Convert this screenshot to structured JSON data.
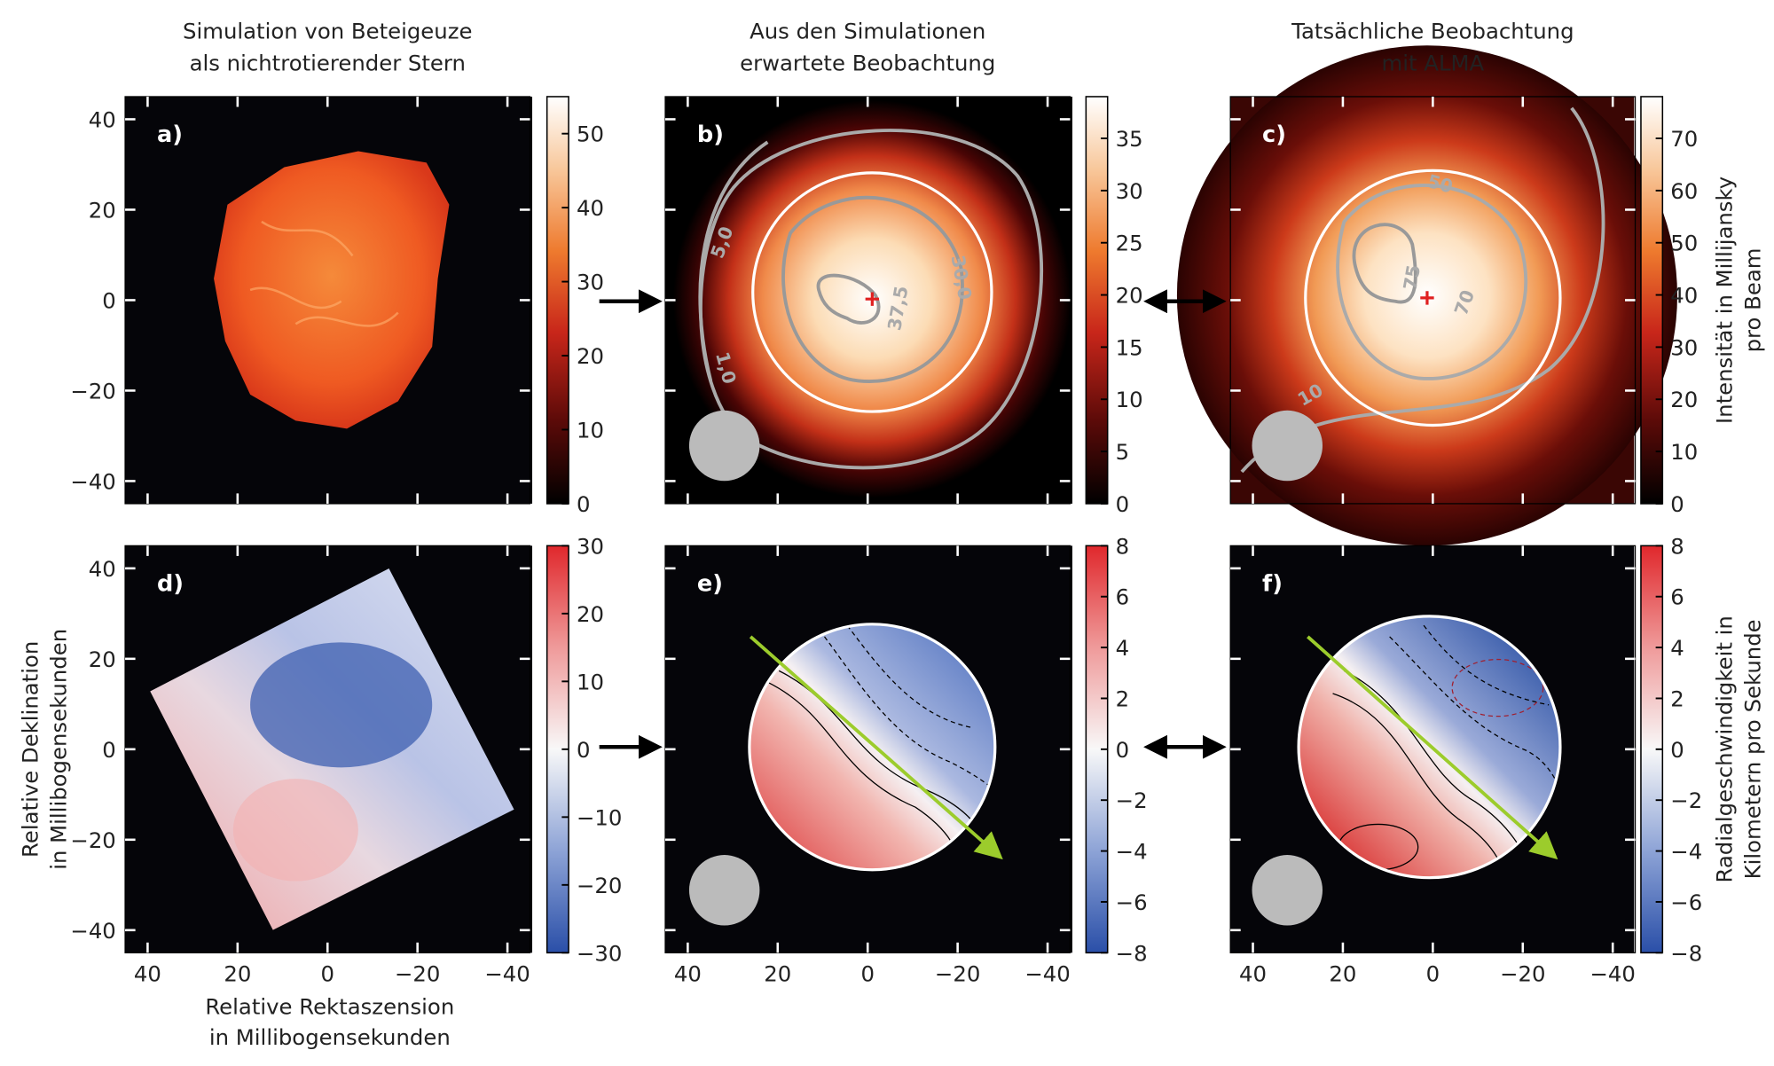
{
  "chart_data": [
    {
      "type": "heatmap",
      "label": "a)",
      "title": [
        "Simulation von Beteigeuze",
        "als nichtrotierender Stern"
      ],
      "colormap": "heat",
      "xlim": [
        45,
        -45
      ],
      "ylim": [
        -45,
        45
      ],
      "xticks": [
        40,
        20,
        0,
        -20,
        -40
      ],
      "yticks": [
        40,
        20,
        0,
        {
          "value": -20,
          "label": "−20"
        },
        {
          "value": -40,
          "label": "−40"
        }
      ],
      "show_xtick_labels": false,
      "show_ytick_labels": true,
      "clim": [
        0,
        55
      ],
      "cticks": [
        0,
        10,
        20,
        30,
        40,
        50
      ]
    },
    {
      "type": "heatmap",
      "label": "b)",
      "title": [
        "Aus den Simulationen",
        "erwartete Beobachtung"
      ],
      "colormap": "heat",
      "xlim": [
        45,
        -45
      ],
      "ylim": [
        -45,
        45
      ],
      "xticks": [
        40,
        20,
        0,
        -20,
        -40
      ],
      "yticks": [
        40,
        20,
        0,
        -20,
        -40
      ],
      "show_xtick_labels": false,
      "show_ytick_labels": false,
      "clim": [
        0,
        39
      ],
      "cticks": [
        0,
        5,
        10,
        15,
        20,
        25,
        30,
        35
      ],
      "contour_labels": [
        "5,0",
        "30,0",
        "37,5",
        "1,0"
      ]
    },
    {
      "type": "heatmap",
      "label": "c)",
      "title": [
        "Tatsächliche Beobachtung",
        "mit ALMA"
      ],
      "colormap": "heat",
      "xlim": [
        45,
        -45
      ],
      "ylim": [
        -45,
        45
      ],
      "xticks": [
        40,
        20,
        0,
        -20,
        -40
      ],
      "yticks": [
        40,
        20,
        0,
        -20,
        -40
      ],
      "show_xtick_labels": false,
      "show_ytick_labels": false,
      "clim": [
        0,
        78
      ],
      "cticks": [
        0,
        10,
        20,
        30,
        40,
        50,
        60,
        70
      ],
      "clabel": [
        "Intensität in Millijansky",
        "pro Beam"
      ],
      "contour_labels": [
        "50",
        "75",
        "70",
        "10"
      ]
    },
    {
      "type": "heatmap",
      "label": "d)",
      "colormap": "diverging",
      "xlabel": [
        "Relative Rektaszension",
        "in Millibogensekunden"
      ],
      "ylabel": [
        "Relative Deklination",
        "in Millibogensekunden"
      ],
      "xlim": [
        45,
        -45
      ],
      "ylim": [
        -45,
        45
      ],
      "xticks": [
        40,
        20,
        0,
        {
          "value": -20,
          "label": "−20"
        },
        {
          "value": -40,
          "label": "−40"
        }
      ],
      "yticks": [
        40,
        20,
        0,
        {
          "value": -20,
          "label": "−20"
        },
        {
          "value": -40,
          "label": "−40"
        }
      ],
      "show_xtick_labels": true,
      "show_ytick_labels": true,
      "clim": [
        -30,
        30
      ],
      "cticks": [
        {
          "value": -30,
          "label": "−30"
        },
        {
          "value": -20,
          "label": "−20"
        },
        {
          "value": -10,
          "label": "−10"
        },
        0,
        10,
        20,
        30
      ]
    },
    {
      "type": "heatmap",
      "label": "e)",
      "colormap": "diverging",
      "xlim": [
        45,
        -45
      ],
      "ylim": [
        -45,
        45
      ],
      "xticks": [
        40,
        20,
        0,
        {
          "value": -20,
          "label": "−20"
        },
        {
          "value": -40,
          "label": "−40"
        }
      ],
      "yticks": [
        40,
        20,
        0,
        -20,
        -40
      ],
      "show_xtick_labels": true,
      "show_ytick_labels": false,
      "clim": [
        -8,
        8
      ],
      "cticks": [
        {
          "value": -8,
          "label": "−8"
        },
        {
          "value": -6,
          "label": "−6"
        },
        {
          "value": -4,
          "label": "−4"
        },
        {
          "value": -2,
          "label": "−2"
        },
        0,
        2,
        4,
        6,
        8
      ]
    },
    {
      "type": "heatmap",
      "label": "f)",
      "colormap": "diverging",
      "xlim": [
        45,
        -45
      ],
      "ylim": [
        -45,
        45
      ],
      "xticks": [
        40,
        20,
        0,
        {
          "value": -20,
          "label": "−20"
        },
        {
          "value": -40,
          "label": "−40"
        }
      ],
      "yticks": [
        40,
        20,
        0,
        -20,
        -40
      ],
      "show_xtick_labels": true,
      "show_ytick_labels": false,
      "clim": [
        -8,
        8
      ],
      "cticks": [
        {
          "value": -8,
          "label": "−8"
        },
        {
          "value": -6,
          "label": "−6"
        },
        {
          "value": -4,
          "label": "−4"
        },
        {
          "value": -2,
          "label": "−2"
        },
        0,
        2,
        4,
        6,
        8
      ],
      "clabel": [
        "Radialgeschwindigkeit in",
        "Kilometern pro Sekunde"
      ]
    }
  ]
}
